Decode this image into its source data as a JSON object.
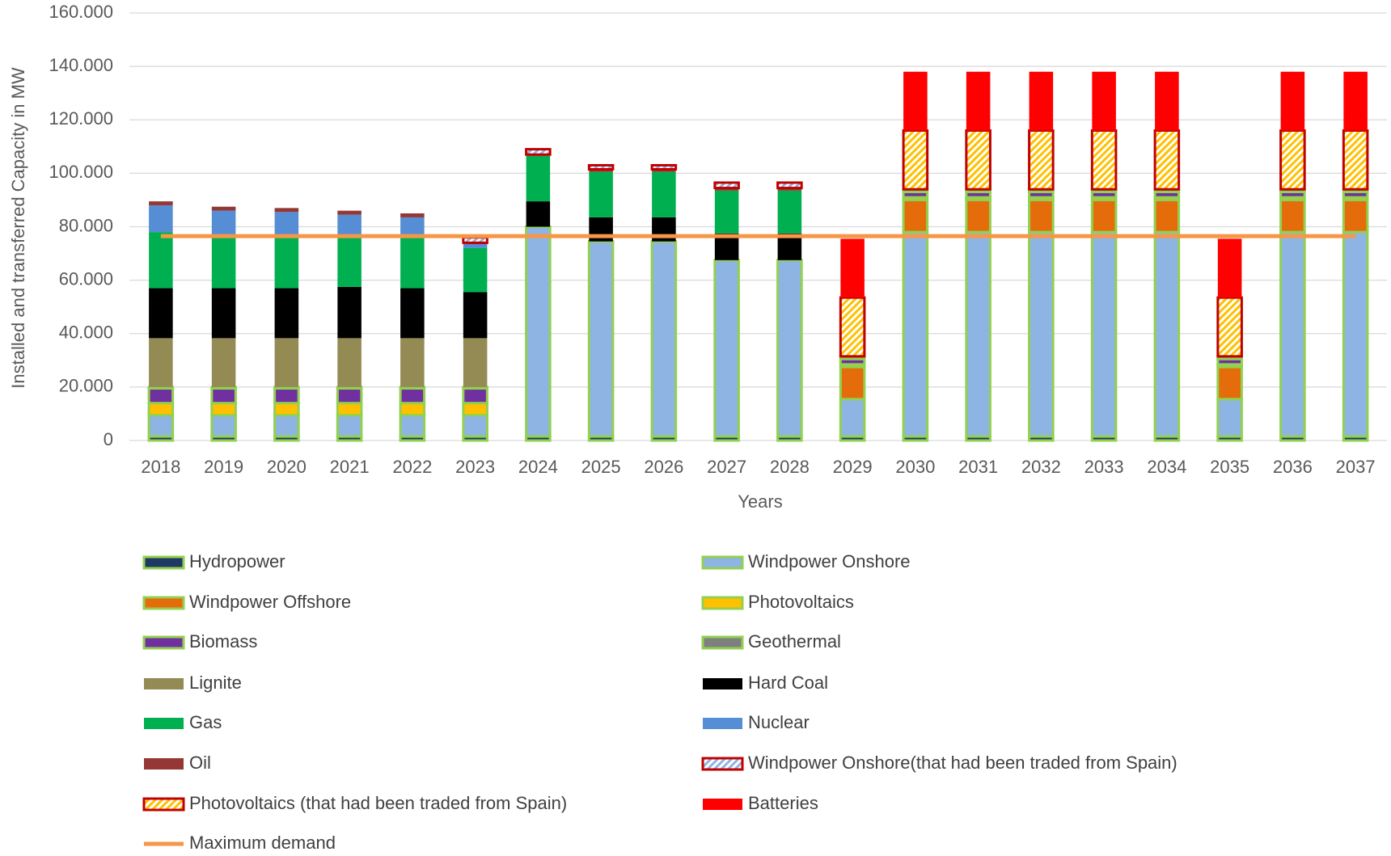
{
  "chart_data": {
    "type": "bar",
    "stacked": true,
    "y_label": "Installed and transferred Capacity in MW",
    "x_label": "Years",
    "categories": [
      "2018",
      "2019",
      "2020",
      "2021",
      "2022",
      "2023",
      "2024",
      "2025",
      "2026",
      "2027",
      "2028",
      "2029",
      "2030",
      "2031",
      "2032",
      "2033",
      "2034",
      "2035",
      "2036",
      "2037"
    ],
    "ylim": [
      0,
      160000
    ],
    "yticks": [
      0,
      {
        "value": 20000,
        "label": "20.000"
      },
      {
        "value": 40000,
        "label": "40.000"
      },
      {
        "value": 60000,
        "label": "60.000"
      },
      {
        "value": 80000,
        "label": "80.000"
      },
      {
        "value": 100000,
        "label": "100.000"
      },
      {
        "value": 120000,
        "label": "120.000"
      },
      {
        "value": 140000,
        "label": "140.000"
      },
      {
        "value": 160000,
        "label": "160.000"
      }
    ],
    "grid": true,
    "series": [
      {
        "name": "Hydropower",
        "color": "#203864",
        "border": "#92d050",
        "values": [
          1500,
          1500,
          1500,
          1500,
          1500,
          1500,
          1500,
          1500,
          1500,
          1500,
          1500,
          1500,
          1500,
          1500,
          1500,
          1500,
          1500,
          1500,
          1500,
          1500
        ]
      },
      {
        "name": "Windpower Onshore",
        "color": "#8eb4e3",
        "border": "#92d050",
        "values": [
          8000,
          8000,
          8000,
          8000,
          8000,
          8000,
          78500,
          73000,
          73000,
          66000,
          66000,
          14000,
          76500,
          76500,
          76500,
          76500,
          76500,
          14000,
          76500,
          76500
        ]
      },
      {
        "name": "Windpower Offshore",
        "color": "#e46c0a",
        "border": "#92d050",
        "values": [
          0,
          0,
          0,
          0,
          0,
          0,
          0,
          0,
          0,
          0,
          0,
          12000,
          12000,
          12000,
          12000,
          12000,
          12000,
          12000,
          12000,
          12000
        ]
      },
      {
        "name": "Photovoltaics",
        "color": "#ffc000",
        "border": "#92d050",
        "values": [
          4500,
          4500,
          4500,
          4500,
          4500,
          4500,
          0,
          0,
          0,
          0,
          0,
          1000,
          1000,
          1000,
          1000,
          1000,
          1000,
          1000,
          1000,
          1000
        ]
      },
      {
        "name": "Biomass",
        "color": "#7030a0",
        "border": "#92d050",
        "values": [
          5500,
          5500,
          5500,
          5500,
          5500,
          5500,
          0,
          0,
          0,
          0,
          0,
          2000,
          2000,
          2000,
          2000,
          2000,
          2000,
          2000,
          2000,
          2000
        ]
      },
      {
        "name": "Geothermal",
        "color": "#7f7f7f",
        "border": "#92d050",
        "values": [
          500,
          500,
          500,
          500,
          500,
          500,
          0,
          0,
          0,
          0,
          0,
          1000,
          1000,
          1000,
          1000,
          1000,
          1000,
          1000,
          1000,
          1000
        ]
      },
      {
        "name": "Lignite",
        "color": "#948a54",
        "values": [
          18300,
          18300,
          18300,
          18300,
          18300,
          18300,
          0,
          0,
          0,
          0,
          0,
          0,
          0,
          0,
          0,
          0,
          0,
          0,
          0,
          0
        ]
      },
      {
        "name": "Hard Coal",
        "color": "#000000",
        "values": [
          18700,
          18700,
          18700,
          19200,
          18700,
          17200,
          9500,
          9000,
          9000,
          10000,
          10000,
          0,
          0,
          0,
          0,
          0,
          0,
          0,
          0,
          0
        ]
      },
      {
        "name": "Gas",
        "color": "#00b050",
        "values": [
          21000,
          20000,
          20000,
          19500,
          20000,
          16500,
          17000,
          17000,
          17000,
          16000,
          16000,
          0,
          0,
          0,
          0,
          0,
          0,
          0,
          0,
          0
        ]
      },
      {
        "name": "Nuclear",
        "color": "#558ed5",
        "values": [
          10000,
          9000,
          8500,
          7500,
          6500,
          1500,
          0,
          0,
          0,
          0,
          0,
          0,
          0,
          0,
          0,
          0,
          0,
          0,
          0,
          0
        ]
      },
      {
        "name": "Oil",
        "color": "#953735",
        "values": [
          1500,
          1500,
          1500,
          1500,
          1500,
          500,
          500,
          1000,
          1000,
          1000,
          1000,
          0,
          0,
          0,
          0,
          0,
          0,
          0,
          0,
          0
        ]
      },
      {
        "name": "Windpower Onshore(that had been traded from Spain)",
        "color": "#8eb4e3",
        "border": "#c00000",
        "pattern": "hatch",
        "values": [
          0,
          0,
          0,
          0,
          0,
          2000,
          2000,
          1500,
          1500,
          2000,
          2000,
          0,
          0,
          0,
          0,
          0,
          0,
          0,
          0,
          0
        ]
      },
      {
        "name": "Photovoltaics (that had been traded from Spain)",
        "color": "#ffc000",
        "border": "#c00000",
        "pattern": "hatch",
        "values": [
          0,
          0,
          0,
          0,
          0,
          0,
          0,
          0,
          0,
          0,
          0,
          22000,
          22000,
          22000,
          22000,
          22000,
          22000,
          22000,
          22000,
          22000
        ]
      },
      {
        "name": "Batteries",
        "color": "#ff0000",
        "values": [
          0,
          0,
          0,
          0,
          0,
          0,
          0,
          0,
          0,
          0,
          0,
          22000,
          22000,
          22000,
          22000,
          22000,
          22000,
          22000,
          22000,
          22000
        ]
      }
    ],
    "lines": [
      {
        "name": "Maximum demand",
        "color": "#f79646",
        "values": [
          76500,
          76500,
          76500,
          76500,
          76500,
          76500,
          76500,
          76500,
          76500,
          76500,
          76500,
          76500,
          76500,
          76500,
          76500,
          76500,
          76500,
          76500,
          76500,
          76500
        ]
      }
    ]
  }
}
